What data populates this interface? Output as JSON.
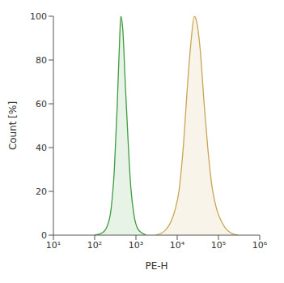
{
  "chart_data": {
    "type": "area",
    "x_label": "PE-H",
    "y_label": "Count [%]",
    "log": "x",
    "grid": false,
    "xlim": [
      10,
      1000000
    ],
    "xticks": [
      {
        "value": 10,
        "label": "10¹"
      },
      {
        "value": 100,
        "label": "10²"
      },
      {
        "value": 1000,
        "label": "10³"
      },
      {
        "value": 10000,
        "label": "10⁴"
      },
      {
        "value": 100000,
        "label": "10⁵"
      },
      {
        "value": 1000000,
        "label": "10⁶"
      }
    ],
    "ylim": [
      0,
      100
    ],
    "yticks": [
      0,
      20,
      40,
      60,
      80,
      100
    ],
    "series": [
      {
        "color": "#3f9b3f",
        "x": [
          100,
          150,
          200,
          250,
          300,
          350,
          400,
          430,
          480,
          550,
          650,
          750,
          900,
          1100,
          1400,
          1800
        ],
        "values": [
          0,
          1,
          4,
          12,
          30,
          58,
          88,
          100,
          94,
          70,
          42,
          22,
          9,
          3,
          1,
          0
        ]
      },
      {
        "color": "#c9a452",
        "x": [
          3000,
          5000,
          7000,
          9000,
          11000,
          14000,
          18000,
          22000,
          26000,
          30000,
          36000,
          45000,
          55000,
          70000,
          90000,
          120000,
          150000,
          200000,
          300000
        ],
        "values": [
          0,
          2,
          6,
          12,
          20,
          40,
          70,
          90,
          100,
          97,
          85,
          60,
          40,
          22,
          12,
          6,
          3,
          1,
          0
        ]
      }
    ]
  }
}
